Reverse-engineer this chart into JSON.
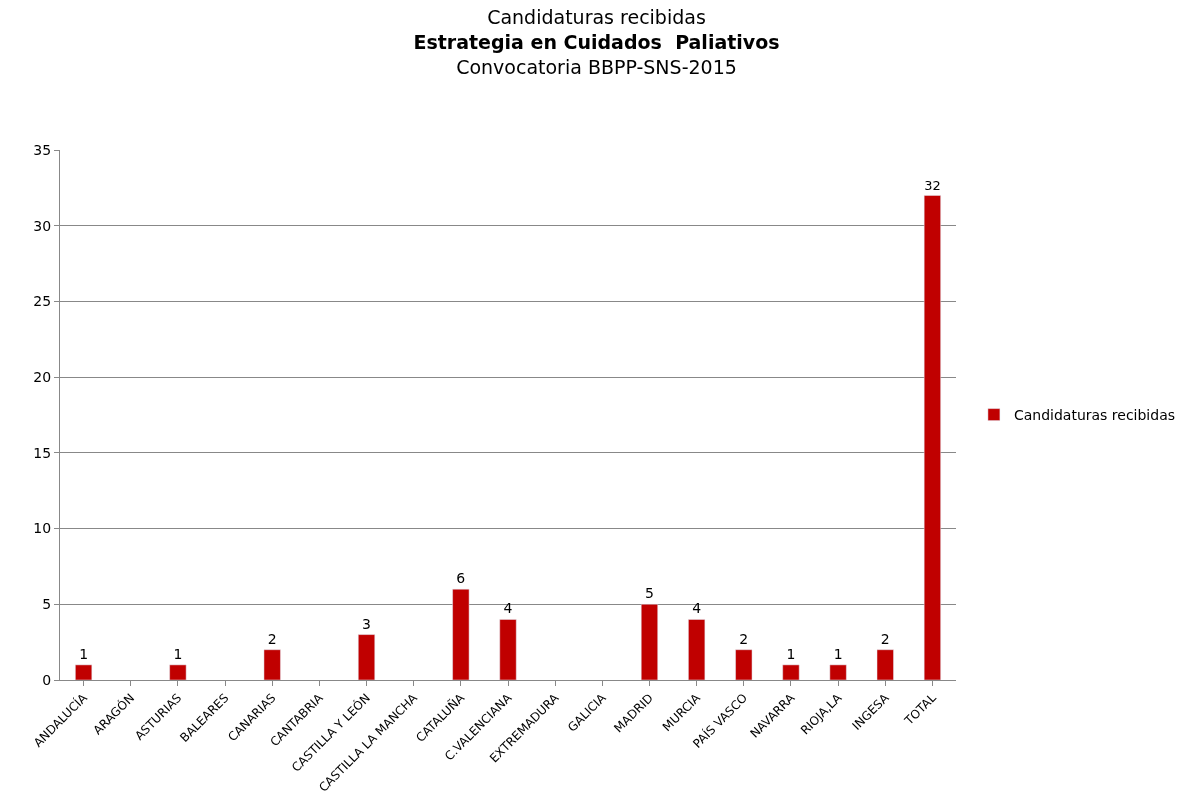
{
  "chart_data": {
    "type": "bar",
    "title": "Candidaturas recibidas",
    "subtitle": "Estrategia en Cuidados  Paliativos",
    "annotations": [
      "Convocatoria BBPP-SNS-2015"
    ],
    "categories": [
      "ANDALUCÍA",
      "ARAGÓN",
      "ASTURIAS",
      "BALEARES",
      "CANARIAS",
      "CANTABRIA",
      "CASTILLA Y LEÓN",
      "CASTILLA LA MANCHA",
      "CATALUÑA",
      "C.VALENCIANA",
      "EXTREMADURA",
      "GALICIA",
      "MADRID",
      "MURCIA",
      "PAÍS VASCO",
      "NAVARRA",
      "RIOJA,LA",
      "INGESA",
      "TOTAL"
    ],
    "series": [
      {
        "name": "Candidaturas recibidas",
        "color": "#c00000",
        "values": [
          1,
          null,
          1,
          null,
          2,
          null,
          3,
          null,
          6,
          4,
          null,
          null,
          5,
          4,
          2,
          1,
          1,
          2,
          32
        ]
      }
    ],
    "ylim": [
      0,
      35
    ],
    "yticks": [
      0,
      5,
      10,
      15,
      20,
      25,
      30,
      35
    ],
    "grid": "y",
    "legend": "right",
    "data_labels": true
  }
}
